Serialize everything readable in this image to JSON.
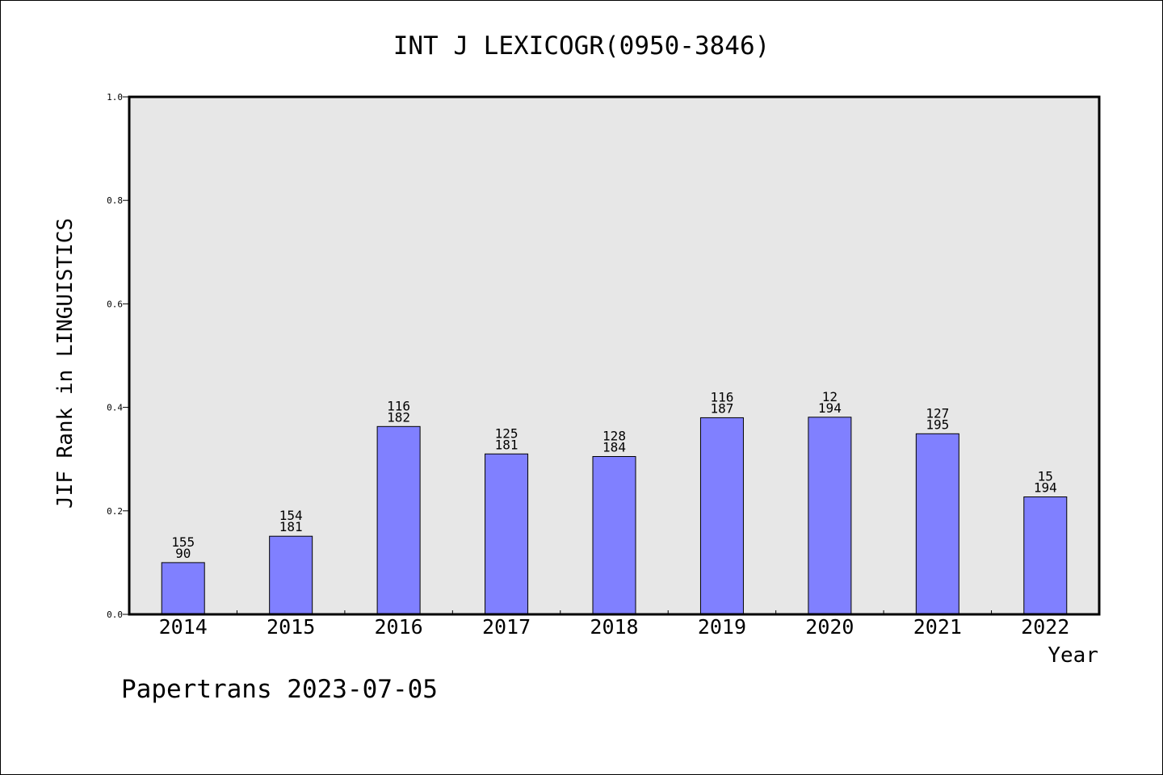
{
  "chart_data": {
    "type": "bar",
    "title": "INT J LEXICOGR(0950-3846)",
    "xlabel": "Year",
    "ylabel": "JIF Rank in LINGUISTICS",
    "categories": [
      "2014",
      "2015",
      "2016",
      "2017",
      "2018",
      "2019",
      "2020",
      "2021",
      "2022"
    ],
    "values": [
      0.1,
      0.151,
      0.363,
      0.31,
      0.305,
      0.38,
      0.381,
      0.349,
      0.227
    ],
    "rank": [
      155,
      154,
      116,
      125,
      128,
      116,
      12,
      127,
      15
    ],
    "total": [
      90,
      181,
      182,
      181,
      184,
      187,
      194,
      195,
      194
    ],
    "ylim": [
      0,
      1.0
    ],
    "yticks": [
      "0.0",
      "0.2",
      "0.4",
      "0.6",
      "0.8",
      "1.0"
    ],
    "grid": false,
    "colors": {
      "bar": "#8080ff",
      "plot_bg": "#e7e7e7",
      "bar_edge": "#000000"
    }
  },
  "footer": "Papertrans 2023-07-05"
}
